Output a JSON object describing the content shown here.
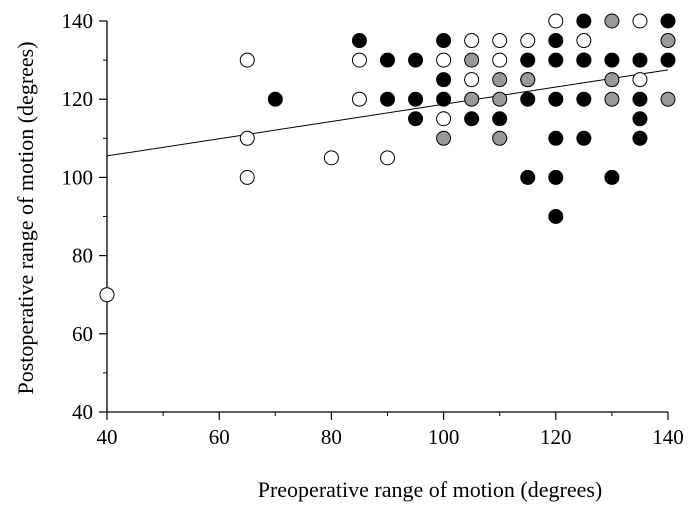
{
  "chart_data": {
    "type": "scatter",
    "title": "",
    "xlabel": "Preoperative range of motion (degrees)",
    "ylabel": "Postoperative range of motion (degrees)",
    "xlim": [
      40,
      140
    ],
    "ylim": [
      40,
      140
    ],
    "xticks": [
      40,
      60,
      80,
      100,
      120,
      140
    ],
    "yticks": [
      40,
      60,
      80,
      100,
      120,
      140
    ],
    "grid": false,
    "legend": "none",
    "colors": {
      "open": "#ffffff",
      "gray": "#999999",
      "black": "#000000",
      "edge": "#000000"
    },
    "series": [
      {
        "marker": "open-circle",
        "points": [
          [
            40,
            70
          ],
          [
            65,
            130
          ],
          [
            65,
            110
          ],
          [
            65,
            100
          ],
          [
            80,
            105
          ],
          [
            85,
            130
          ],
          [
            85,
            120
          ],
          [
            90,
            105
          ],
          [
            100,
            130
          ],
          [
            100,
            115
          ],
          [
            105,
            135
          ],
          [
            105,
            125
          ],
          [
            110,
            135
          ],
          [
            110,
            130
          ],
          [
            115,
            135
          ],
          [
            115,
            125
          ],
          [
            120,
            140
          ],
          [
            125,
            135
          ],
          [
            135,
            140
          ],
          [
            135,
            125
          ]
        ]
      },
      {
        "marker": "gray-circle",
        "points": [
          [
            100,
            110
          ],
          [
            105,
            130
          ],
          [
            105,
            120
          ],
          [
            110,
            125
          ],
          [
            110,
            120
          ],
          [
            110,
            110
          ],
          [
            115,
            125
          ],
          [
            125,
            130
          ],
          [
            130,
            140
          ],
          [
            130,
            125
          ],
          [
            130,
            120
          ],
          [
            140,
            135
          ],
          [
            140,
            120
          ]
        ]
      },
      {
        "marker": "filled-circle",
        "points": [
          [
            70,
            120
          ],
          [
            85,
            135
          ],
          [
            90,
            130
          ],
          [
            90,
            120
          ],
          [
            95,
            130
          ],
          [
            95,
            120
          ],
          [
            95,
            115
          ],
          [
            100,
            135
          ],
          [
            100,
            125
          ],
          [
            100,
            120
          ],
          [
            105,
            115
          ],
          [
            110,
            115
          ],
          [
            115,
            130
          ],
          [
            115,
            120
          ],
          [
            115,
            100
          ],
          [
            120,
            135
          ],
          [
            120,
            130
          ],
          [
            120,
            120
          ],
          [
            120,
            110
          ],
          [
            120,
            100
          ],
          [
            120,
            90
          ],
          [
            125,
            140
          ],
          [
            125,
            130
          ],
          [
            125,
            120
          ],
          [
            125,
            110
          ],
          [
            130,
            130
          ],
          [
            130,
            100
          ],
          [
            135,
            130
          ],
          [
            135,
            120
          ],
          [
            135,
            115
          ],
          [
            135,
            110
          ],
          [
            140,
            140
          ],
          [
            140,
            130
          ]
        ]
      }
    ],
    "trendline": {
      "x": [
        40,
        140
      ],
      "y": [
        105.5,
        127.5
      ]
    }
  }
}
